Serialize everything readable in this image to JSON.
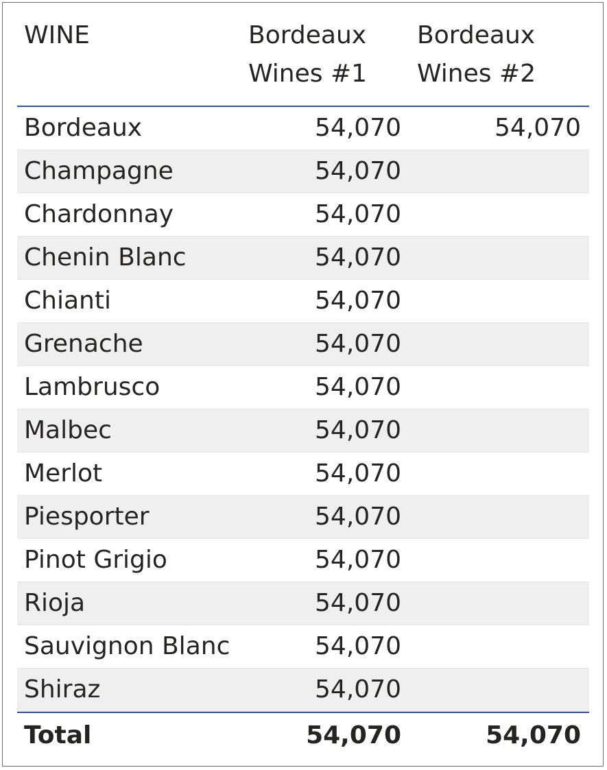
{
  "table": {
    "columns": [
      "WINE",
      "Bordeaux\nWines #1",
      "Bordeaux\nWines #2"
    ],
    "rows": [
      {
        "wine": "Bordeaux",
        "b1": "54,070",
        "b2": "54,070"
      },
      {
        "wine": "Champagne",
        "b1": "54,070",
        "b2": ""
      },
      {
        "wine": "Chardonnay",
        "b1": "54,070",
        "b2": ""
      },
      {
        "wine": "Chenin Blanc",
        "b1": "54,070",
        "b2": ""
      },
      {
        "wine": "Chianti",
        "b1": "54,070",
        "b2": ""
      },
      {
        "wine": "Grenache",
        "b1": "54,070",
        "b2": ""
      },
      {
        "wine": "Lambrusco",
        "b1": "54,070",
        "b2": ""
      },
      {
        "wine": "Malbec",
        "b1": "54,070",
        "b2": ""
      },
      {
        "wine": "Merlot",
        "b1": "54,070",
        "b2": ""
      },
      {
        "wine": "Piesporter",
        "b1": "54,070",
        "b2": ""
      },
      {
        "wine": "Pinot Grigio",
        "b1": "54,070",
        "b2": ""
      },
      {
        "wine": "Rioja",
        "b1": "54,070",
        "b2": ""
      },
      {
        "wine": "Sauvignon Blanc",
        "b1": "54,070",
        "b2": ""
      },
      {
        "wine": "Shiraz",
        "b1": "54,070",
        "b2": ""
      }
    ],
    "total": {
      "label": "Total",
      "b1": "54,070",
      "b2": "54,070"
    }
  },
  "colors": {
    "header_rule": "#2f5597",
    "alt_row": "#efefef",
    "text": "#252423"
  }
}
